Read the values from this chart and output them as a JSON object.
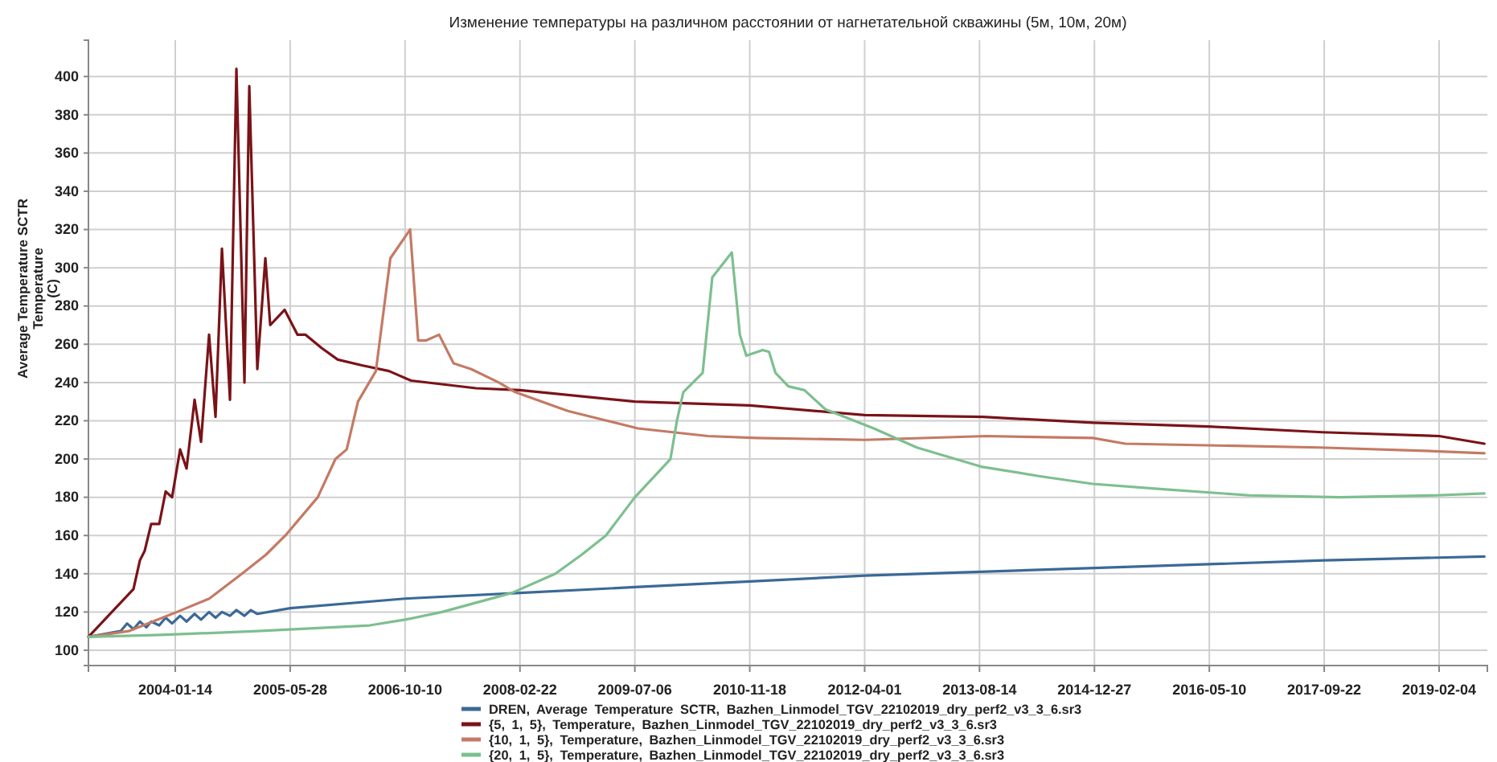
{
  "chart_data": {
    "type": "line",
    "title": "Изменение температуры на различном расстоянии от нагнетательной скважины (5м, 10м, 20м)",
    "ylabel": "Average Temperature SCTR\nTemperature\n(C)",
    "xlim": [
      "2003-01-01",
      "2019-09-02"
    ],
    "xticks": [
      "2004-01-14",
      "2005-05-28",
      "2006-10-10",
      "2008-02-22",
      "2009-07-06",
      "2010-11-18",
      "2012-04-01",
      "2013-08-14",
      "2014-12-27",
      "2016-05-10",
      "2017-09-22",
      "2019-02-04"
    ],
    "ylim": [
      92,
      419
    ],
    "yticks": [
      100,
      120,
      140,
      160,
      180,
      200,
      220,
      240,
      260,
      280,
      300,
      320,
      340,
      360,
      380,
      400
    ],
    "grid": true,
    "legend": "bottom",
    "marker": "none",
    "line_style": "solid",
    "series": [
      {
        "name": "DREN, Average Temperature SCTR, Bazhen_Linmodel_TGV_22102019_dry_perf2_v3_3_6.sr3",
        "color": "#3b6996",
        "x": [
          "2003-01-01",
          "2003-05-21",
          "2003-06-18",
          "2003-07-16",
          "2003-08-13",
          "2003-09-10",
          "2003-10-01",
          "2003-11-05",
          "2003-12-03",
          "2003-12-31",
          "2004-02-04",
          "2004-03-03",
          "2004-04-07",
          "2004-05-05",
          "2004-06-09",
          "2004-07-07",
          "2004-08-04",
          "2004-09-08",
          "2004-10-06",
          "2004-11-10",
          "2004-12-08",
          "2005-01-05",
          "2005-05-28",
          "2006-10-10",
          "2008-02-22",
          "2009-07-06",
          "2010-11-18",
          "2012-04-01",
          "2014-12-27",
          "2017-09-22",
          "2019-08-20"
        ],
        "values": [
          107,
          110,
          114,
          111,
          115,
          112,
          115,
          113,
          117,
          114,
          118,
          115,
          119,
          116,
          120,
          117,
          120,
          118,
          121,
          118,
          121,
          119,
          122,
          127,
          130,
          133,
          136,
          139,
          143,
          147,
          149
        ]
      },
      {
        "name": "{5, 1, 5}, Temperature, Bazhen_Linmodel_TGV_22102019_dry_perf2_v3_3_6.sr3",
        "color": "#7a1318",
        "x": [
          "2003-01-01",
          "2003-07-16",
          "2003-08-13",
          "2003-09-03",
          "2003-10-01",
          "2003-11-05",
          "2003-12-03",
          "2003-12-31",
          "2004-02-04",
          "2004-03-03",
          "2004-04-07",
          "2004-05-05",
          "2004-06-09",
          "2004-07-07",
          "2004-08-04",
          "2004-09-08",
          "2004-10-06",
          "2004-11-10",
          "2004-12-01",
          "2005-01-05",
          "2005-02-09",
          "2005-03-02",
          "2005-05-04",
          "2005-06-29",
          "2005-08-03",
          "2005-10-12",
          "2005-12-21",
          "2006-04-05",
          "2006-08-01",
          "2006-11-05",
          "2007-08-15",
          "2008-02-22",
          "2009-07-06",
          "2010-11-18",
          "2012-04-01",
          "2013-08-28",
          "2014-12-20",
          "2016-05-05",
          "2017-09-15",
          "2019-02-04",
          "2019-08-20"
        ],
        "values": [
          107,
          132,
          147,
          152,
          166,
          166,
          183,
          180,
          205,
          195,
          231,
          209,
          265,
          222,
          310,
          231,
          404,
          240,
          395,
          247,
          305,
          270,
          278,
          265,
          265,
          258,
          252,
          249,
          246,
          241,
          237,
          236,
          230,
          228,
          223,
          222,
          219,
          217,
          214,
          212,
          208
        ]
      },
      {
        "name": "{10, 1, 5}, Temperature, Bazhen_Linmodel_TGV_22102019_dry_perf2_v3_3_6.sr3",
        "color": "#c47a64",
        "x": [
          "2003-01-01",
          "2003-06-25",
          "2004-01-21",
          "2004-06-10",
          "2004-10-30",
          "2005-02-12",
          "2005-05-07",
          "2005-09-25",
          "2005-12-11",
          "2006-01-29",
          "2006-03-19",
          "2006-06-05",
          "2006-08-07",
          "2006-11-01",
          "2006-12-06",
          "2007-01-10",
          "2007-03-07",
          "2007-05-09",
          "2007-07-25",
          "2007-11-22",
          "2008-02-01",
          "2008-09-20",
          "2009-03-08",
          "2009-07-20",
          "2010-05-20",
          "2010-12-16",
          "2012-04-01",
          "2013-09-11",
          "2014-12-20",
          "2015-05-10",
          "2017-09-01",
          "2019-02-04",
          "2019-08-20"
        ],
        "values": [
          107,
          110,
          120,
          127,
          140,
          150,
          160,
          180,
          200,
          205,
          230,
          246,
          305,
          320,
          262,
          262,
          265,
          250,
          247,
          240,
          235,
          225,
          220,
          216,
          212,
          211,
          210,
          212,
          211,
          208,
          206,
          204,
          203
        ]
      },
      {
        "name": "{20, 1, 5}, Temperature, Bazhen_Linmodel_TGV_22102019_dry_perf2_v3_3_6.sr3",
        "color": "#7dbf8f",
        "x": [
          "2003-01-01",
          "2003-11-12",
          "2005-01-05",
          "2006-05-09",
          "2006-10-10",
          "2007-03-20",
          "2008-01-18",
          "2008-07-25",
          "2008-11-17",
          "2009-03-02",
          "2009-07-06",
          "2009-12-08",
          "2010-01-05",
          "2010-02-02",
          "2010-04-27",
          "2010-06-08",
          "2010-09-01",
          "2010-10-06",
          "2010-11-03",
          "2011-01-13",
          "2011-02-10",
          "2011-03-10",
          "2011-05-05",
          "2011-07-14",
          "2011-10-13",
          "2012-05-11",
          "2012-11-14",
          "2013-08-21",
          "2014-05-03",
          "2014-12-20",
          "2015-11-14",
          "2016-11-01",
          "2017-12-01",
          "2019-01-21",
          "2019-08-20"
        ],
        "values": [
          107,
          108,
          110,
          113,
          116,
          120,
          130,
          140,
          150,
          160,
          180,
          200,
          220,
          235,
          245,
          295,
          308,
          265,
          254,
          257,
          256,
          245,
          238,
          236,
          226,
          216,
          206,
          196,
          191,
          187,
          184,
          181,
          180,
          181,
          182
        ]
      }
    ]
  }
}
